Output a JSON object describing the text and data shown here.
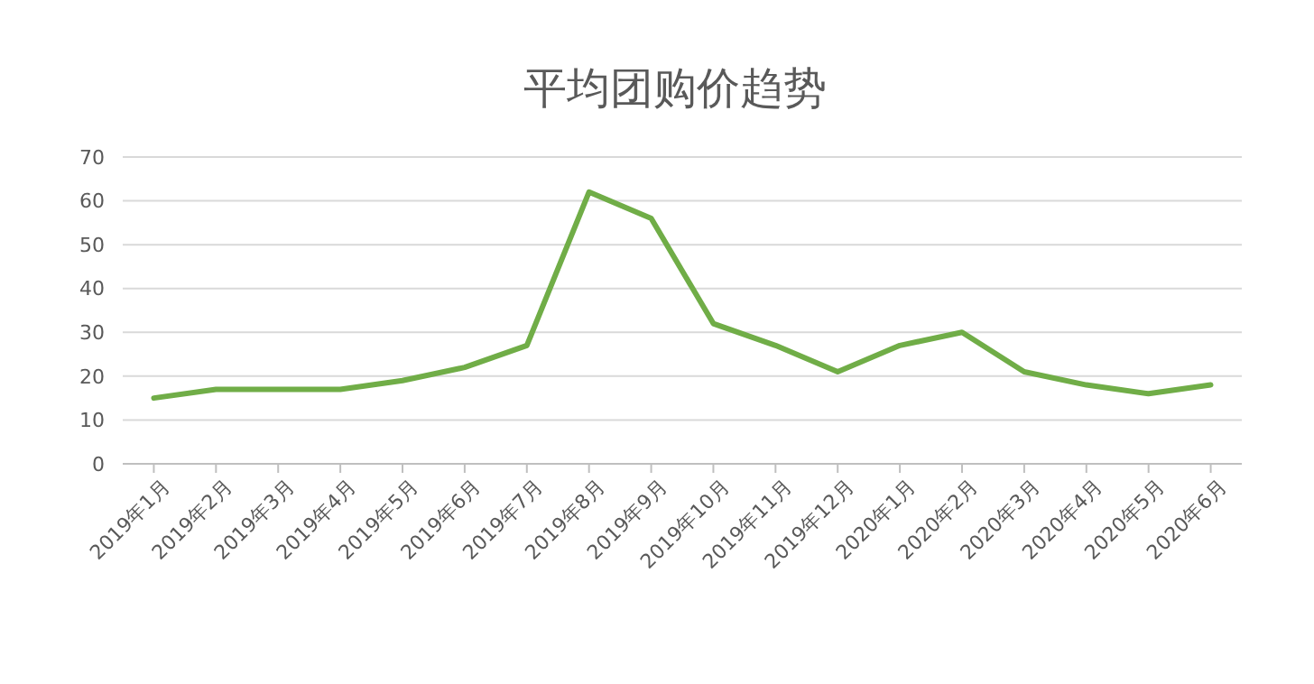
{
  "chart_data": {
    "type": "line",
    "title": "平均团购价趋势",
    "categories": [
      "2019年1月",
      "2019年2月",
      "2019年3月",
      "2019年4月",
      "2019年5月",
      "2019年6月",
      "2019年7月",
      "2019年8月",
      "2019年9月",
      "2019年10月",
      "2019年11月",
      "2019年12月",
      "2020年1月",
      "2020年2月",
      "2020年3月",
      "2020年4月",
      "2020年5月",
      "2020年6月"
    ],
    "series": [
      {
        "color": "#70ad47",
        "values": [
          15,
          17,
          17,
          17,
          19,
          22,
          27,
          62,
          56,
          32,
          27,
          21,
          27,
          30,
          21,
          18,
          16,
          18
        ]
      }
    ],
    "ylim": [
      0,
      70
    ],
    "yticks": [
      0,
      10,
      20,
      30,
      40,
      50,
      60,
      70
    ],
    "grid": "y",
    "marker": "none",
    "line_style": "solid"
  }
}
